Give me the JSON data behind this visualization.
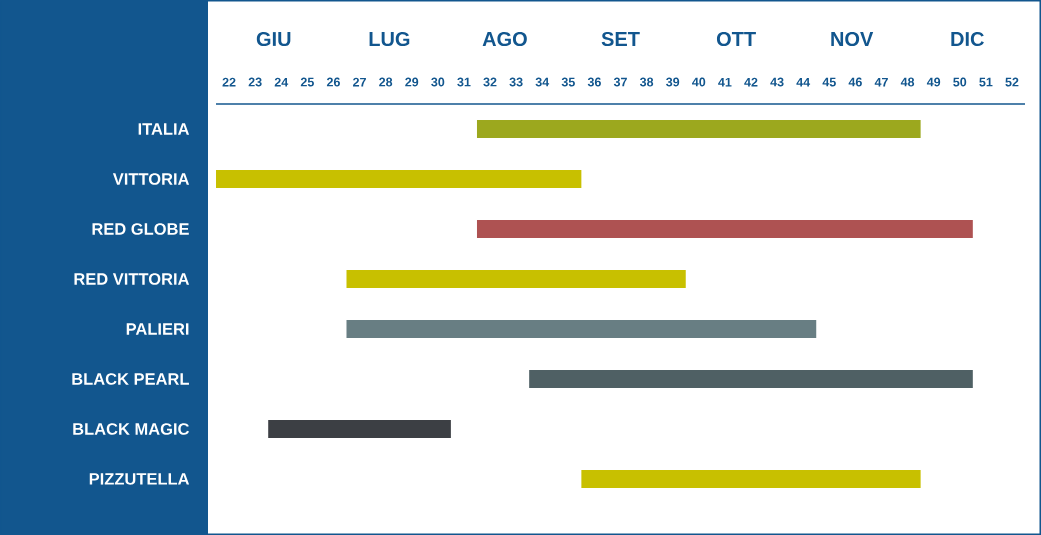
{
  "chart_data": {
    "type": "bar",
    "orientation": "horizontal",
    "categories": [
      "ITALIA",
      "VITTORIA",
      "RED GLOBE",
      "RED VITTORIA",
      "PALIERI",
      "BLACK PEARL",
      "BLACK MAGIC",
      "PIZZUTELLA"
    ],
    "base": [
      31.5,
      21.5,
      31.5,
      26.5,
      26.5,
      33.5,
      23.5,
      35.5
    ],
    "values": [
      17,
      14,
      19,
      13,
      18,
      17,
      7,
      13
    ],
    "colors": [
      "#9ca81e",
      "#c8c000",
      "#ae5252",
      "#c8c000",
      "#687e83",
      "#4f6064",
      "#3c3f44",
      "#c8c000"
    ],
    "xlim": [
      21.5,
      52.5
    ],
    "xticks": [
      22,
      23,
      24,
      25,
      26,
      27,
      28,
      29,
      30,
      31,
      32,
      33,
      34,
      35,
      36,
      37,
      38,
      39,
      40,
      41,
      42,
      43,
      44,
      45,
      46,
      47,
      48,
      49,
      50,
      51,
      52
    ],
    "annotations": [
      "GIU",
      "LUG",
      "AGO",
      "SET",
      "OTT",
      "NOV",
      "DIC"
    ]
  }
}
